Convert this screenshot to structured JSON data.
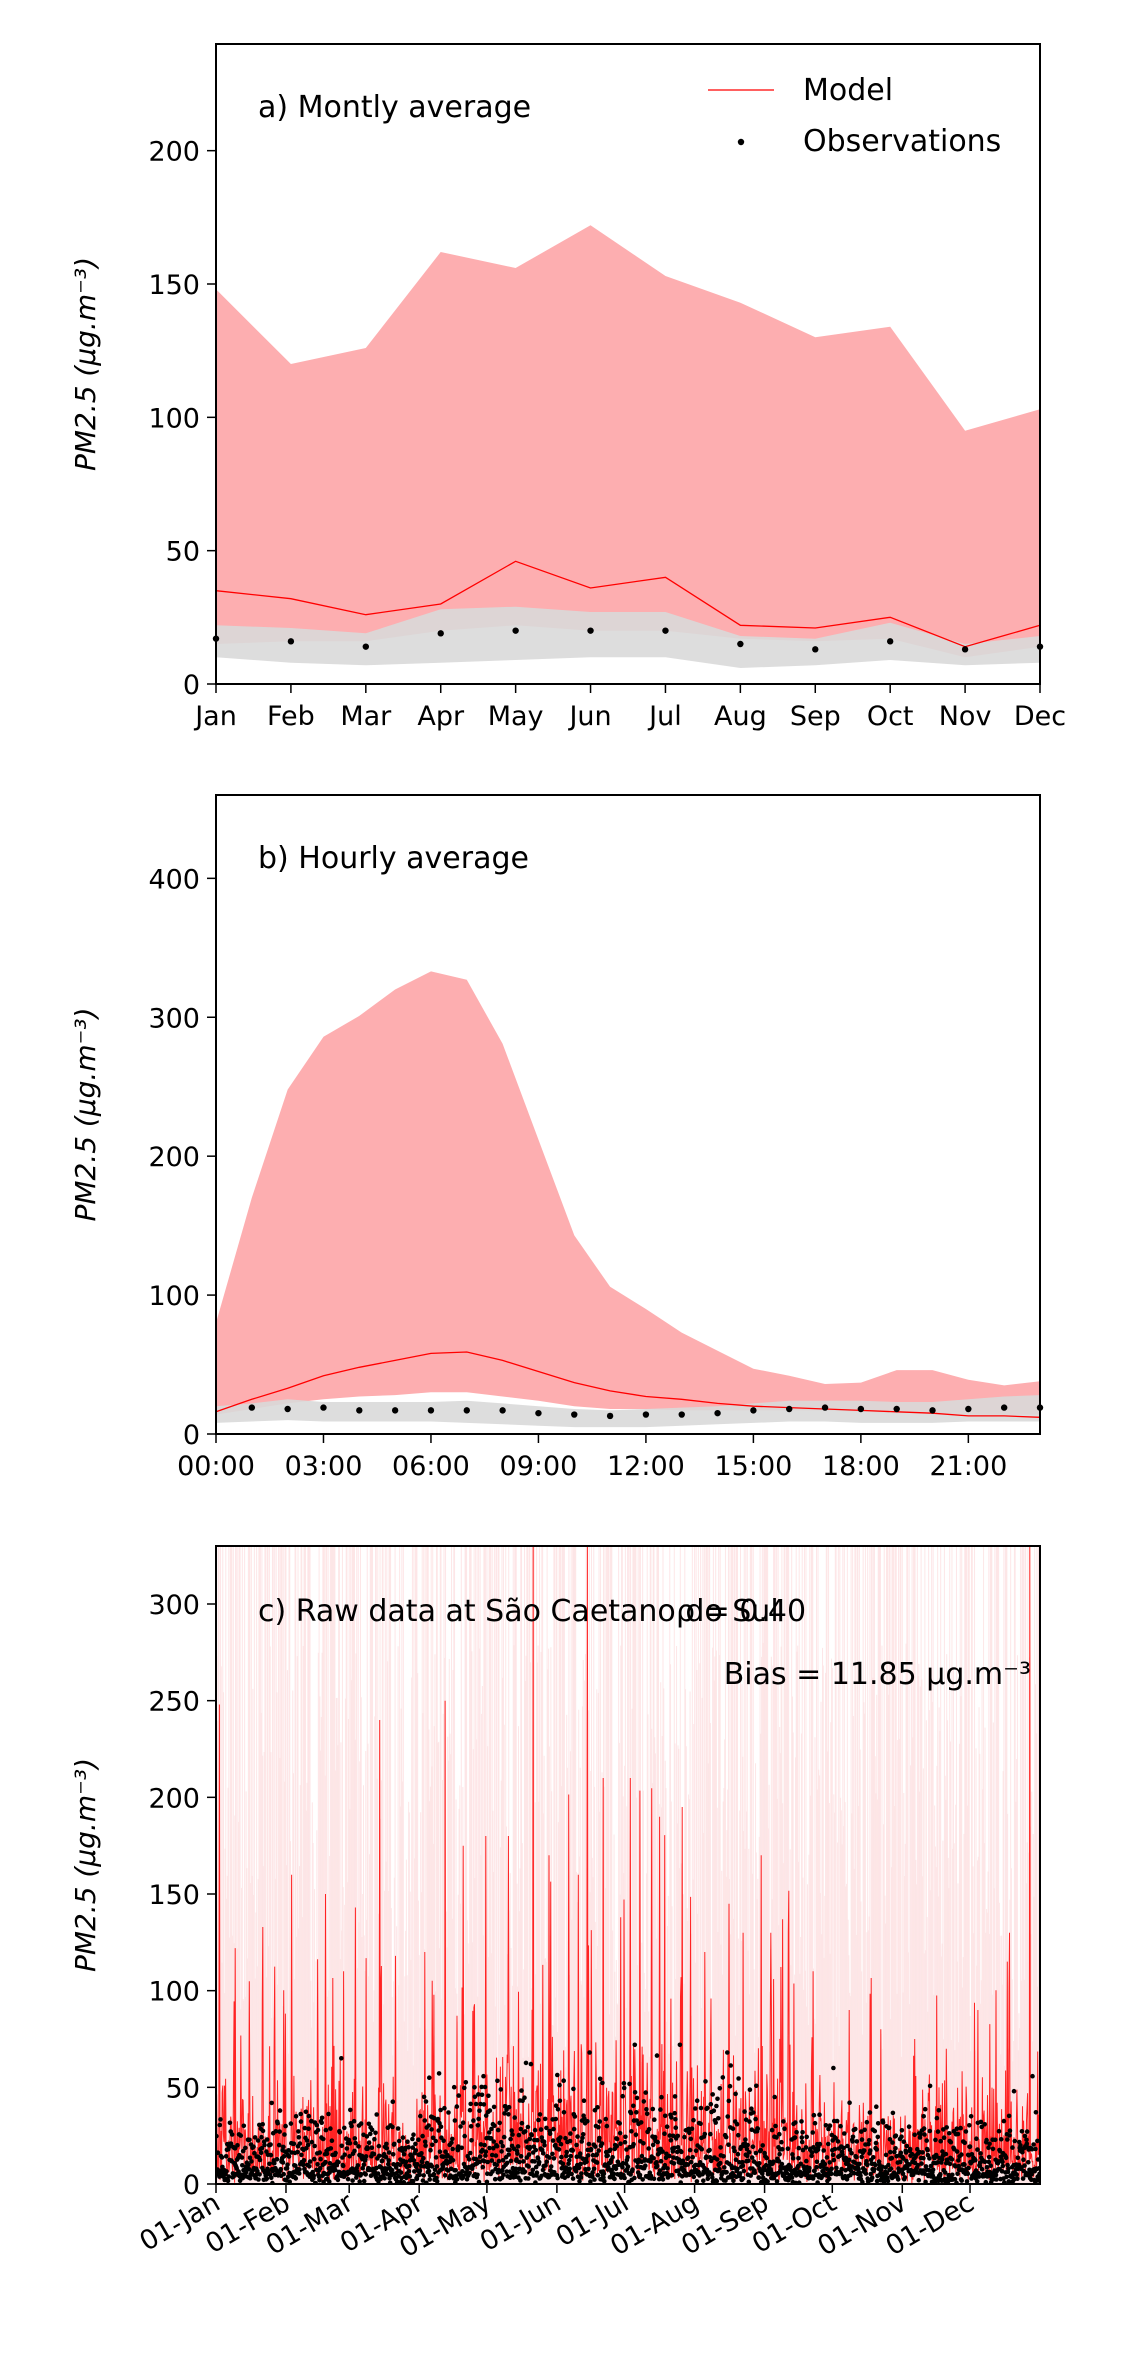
{
  "figure": {
    "colors": {
      "model_line": "#ff0000",
      "model_band": "#fdaeb0",
      "obs_band": "#d9d9d9",
      "obs_points": "#000000",
      "raw_band": "#fde3e4"
    }
  },
  "chart_data": [
    {
      "type": "line",
      "title": "a) Montly average",
      "ylabel": "PM2.5 (μg.m⁻³)",
      "categories": [
        "Jan",
        "Feb",
        "Mar",
        "Apr",
        "May",
        "Jun",
        "Jul",
        "Aug",
        "Sep",
        "Oct",
        "Nov",
        "Dec"
      ],
      "ylim": [
        0,
        240
      ],
      "yticks": [
        0,
        50,
        100,
        150,
        200
      ],
      "legend": {
        "placement": "top-right",
        "entries": [
          "Model",
          "Observations"
        ]
      },
      "series": [
        {
          "name": "Model",
          "kind": "line",
          "values": [
            35,
            32,
            26,
            30,
            46,
            36,
            40,
            22,
            21,
            25,
            14,
            22
          ]
        },
        {
          "name": "Observations",
          "kind": "points",
          "values": [
            17,
            16,
            14,
            19,
            20,
            20,
            20,
            15,
            13,
            16,
            13,
            14
          ]
        }
      ],
      "bands": [
        {
          "of": "Model",
          "lower": [
            15,
            16,
            16,
            20,
            22,
            20,
            20,
            17,
            16,
            17,
            10,
            14
          ],
          "upper": [
            148,
            120,
            126,
            162,
            156,
            172,
            153,
            143,
            130,
            134,
            95,
            103
          ]
        },
        {
          "of": "Observations",
          "lower": [
            10,
            8,
            7,
            8,
            9,
            10,
            10,
            6,
            7,
            9,
            7,
            8
          ],
          "upper": [
            22,
            21,
            19,
            28,
            29,
            27,
            27,
            18,
            17,
            23,
            15,
            18
          ]
        }
      ]
    },
    {
      "type": "line",
      "title": "b) Hourly average",
      "ylabel": "PM2.5 (μg.m⁻³)",
      "xlim": [
        0,
        23
      ],
      "xticks": [
        "00:00",
        "03:00",
        "06:00",
        "09:00",
        "12:00",
        "15:00",
        "18:00",
        "21:00"
      ],
      "ylim": [
        0,
        460
      ],
      "yticks": [
        0,
        100,
        200,
        300,
        400
      ],
      "series": [
        {
          "name": "Model",
          "kind": "line",
          "x": [
            0,
            1,
            2,
            3,
            4,
            5,
            6,
            7,
            8,
            9,
            10,
            11,
            12,
            13,
            14,
            15,
            16,
            17,
            18,
            19,
            20,
            21,
            22,
            23
          ],
          "values": [
            16,
            25,
            33,
            42,
            48,
            53,
            58,
            59,
            53,
            45,
            37,
            31,
            27,
            25,
            22,
            20,
            19,
            18,
            17,
            16,
            15,
            13,
            13,
            12
          ]
        },
        {
          "name": "Observations",
          "kind": "points",
          "x": [
            1,
            2,
            3,
            4,
            5,
            6,
            7,
            8,
            9,
            10,
            11,
            12,
            13,
            14,
            15,
            16,
            17,
            18,
            19,
            20,
            21,
            22,
            23
          ],
          "values": [
            19,
            18,
            19,
            17,
            17,
            17,
            17,
            17,
            15,
            14,
            13,
            14,
            14,
            15,
            17,
            18,
            19,
            18,
            18,
            17,
            18,
            19,
            19
          ]
        }
      ],
      "bands": [
        {
          "of": "Model",
          "x": [
            0,
            1,
            2,
            3,
            4,
            5,
            6,
            7,
            8,
            9,
            10,
            11,
            12,
            13,
            14,
            15,
            16,
            17,
            18,
            19,
            20,
            21,
            22,
            23
          ],
          "lower": [
            14,
            18,
            22,
            25,
            27,
            28,
            30,
            30,
            27,
            24,
            20,
            18,
            18,
            17,
            17,
            17,
            17,
            17,
            16,
            15,
            15,
            14,
            14,
            14
          ],
          "upper": [
            80,
            170,
            248,
            286,
            301,
            320,
            333,
            327,
            281,
            212,
            143,
            106,
            90,
            73,
            60,
            47,
            42,
            36,
            37,
            46,
            46,
            39,
            35,
            38
          ]
        },
        {
          "of": "Observations",
          "x": [
            0,
            1,
            2,
            3,
            4,
            5,
            6,
            7,
            8,
            9,
            10,
            11,
            12,
            13,
            14,
            15,
            16,
            17,
            18,
            19,
            20,
            21,
            22,
            23
          ],
          "lower": [
            8,
            9,
            10,
            9,
            9,
            9,
            9,
            8,
            7,
            6,
            5,
            5,
            5,
            6,
            7,
            8,
            9,
            9,
            8,
            8,
            8,
            9,
            9,
            9
          ],
          "upper": [
            20,
            22,
            25,
            23,
            23,
            23,
            23,
            24,
            22,
            20,
            18,
            17,
            18,
            19,
            20,
            22,
            24,
            24,
            24,
            23,
            23,
            25,
            27,
            28
          ]
        }
      ]
    },
    {
      "type": "line",
      "title": "c) Raw data at São Caetano do Sul",
      "annotations": [
        "ρ = 0.40",
        "Bias = 11.85 μg.m⁻³"
      ],
      "ylabel": "PM2.5 (μg.m⁻³)",
      "xlim": [
        "2019-01-01",
        "2019-12-31"
      ],
      "xticks": [
        "01-Jan",
        "01-Feb",
        "01-Mar",
        "01-Apr",
        "01-May",
        "01-Jun",
        "01-Jul",
        "01-Aug",
        "01-Sep",
        "01-Oct",
        "01-Nov",
        "01-Dec"
      ],
      "ylim": [
        0,
        330
      ],
      "yticks": [
        0,
        50,
        100,
        150,
        200,
        250,
        300
      ],
      "series": [
        {
          "name": "Model",
          "kind": "line",
          "x": [
            "Jan 2",
            "Jan 9",
            "Jan 21",
            "Feb 3",
            "Feb 18",
            "Feb 26",
            "Mar 14",
            "Mar 21",
            "Apr 3",
            "Apr 12",
            "Apr 20",
            "Apr 30",
            "May 10",
            "May 21",
            "May 28",
            "Jun 10",
            "Jun 14",
            "Jun 21",
            "Jul 3",
            "Jul 16",
            "Jul 26",
            "Aug 5",
            "Aug 22",
            "Aug 30",
            "Sep 11",
            "Sep 22",
            "Oct 8",
            "Oct 22",
            "Nov 6",
            "Nov 20",
            "Dec 4",
            "Dec 18",
            "Dec 27"
          ],
          "values": [
            248,
            122,
            95,
            160,
            150,
            110,
            240,
            118,
            120,
            250,
            175,
            180,
            180,
            330,
            170,
            160,
            330,
            210,
            210,
            190,
            195,
            120,
            130,
            170,
            130,
            110,
            90,
            80,
            75,
            70,
            90,
            130,
            330
          ]
        },
        {
          "name": "Observations",
          "kind": "points",
          "x": [
            "Jan 10",
            "Feb 5",
            "Feb 25",
            "Apr 5",
            "Apr 25",
            "May 20",
            "Jun 15",
            "Jul 5",
            "Jul 25",
            "Aug 15",
            "Sep 5",
            "Oct 1",
            "Oct 20",
            "Nov 10",
            "Dec 1",
            "Dec 20"
          ],
          "values": [
            20,
            35,
            65,
            55,
            50,
            62,
            68,
            72,
            72,
            68,
            45,
            60,
            40,
            35,
            35,
            48
          ]
        }
      ]
    }
  ]
}
